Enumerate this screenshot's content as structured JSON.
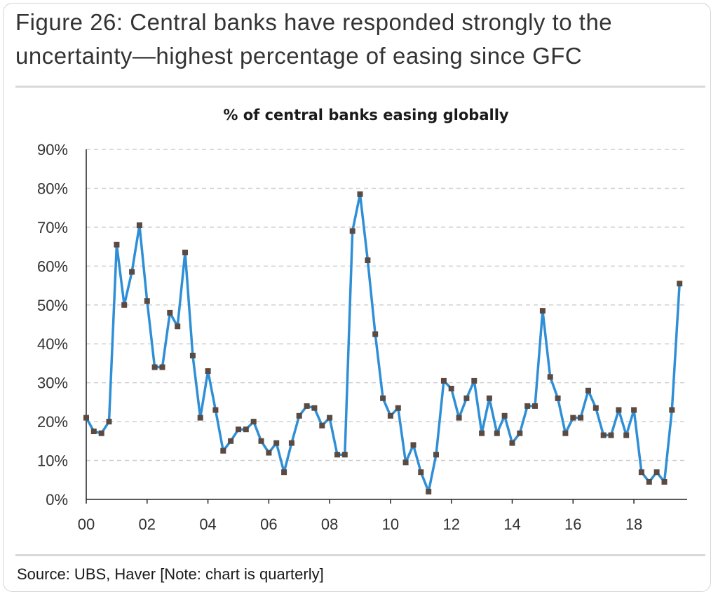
{
  "figure": {
    "title_line1": "Figure 26: Central banks have responded strongly to the",
    "title_line2": "uncertainty—highest percentage of easing since GFC",
    "source": "Source:  UBS, Haver [Note: chart is quarterly]"
  },
  "chart_data": {
    "type": "line",
    "title": "% of central banks easing globally",
    "xlabel": "",
    "ylabel": "",
    "xlim": [
      2000,
      2019.75
    ],
    "ylim": [
      0,
      90
    ],
    "x_ticks": [
      "00",
      "02",
      "04",
      "06",
      "08",
      "10",
      "12",
      "14",
      "16",
      "18"
    ],
    "y_ticks": [
      "0%",
      "10%",
      "20%",
      "30%",
      "40%",
      "50%",
      "60%",
      "70%",
      "80%",
      "90%"
    ],
    "grid": "horizontal dashed",
    "legend": "none",
    "line_color": "#2e8fd6",
    "marker_color": "#5a4a42",
    "series": [
      {
        "name": "% of central banks easing globally",
        "x_start": 2000.0,
        "x_step": 0.25,
        "values": [
          21,
          17.5,
          17,
          20,
          65.5,
          50,
          58.5,
          70.5,
          51,
          34,
          34,
          48,
          44.5,
          63.5,
          37,
          21,
          33,
          23,
          12.5,
          15,
          18,
          18,
          20,
          15,
          12,
          14.5,
          7,
          14.5,
          21.5,
          24,
          23.5,
          19,
          21,
          11.5,
          11.5,
          69,
          78.5,
          61.5,
          42.5,
          26,
          21.5,
          23.5,
          9.5,
          14,
          7,
          2,
          11.5,
          30.5,
          28.5,
          21,
          26,
          30.5,
          17,
          26,
          17,
          21.5,
          14.5,
          17,
          24,
          24,
          48.5,
          31.5,
          26,
          17,
          21,
          21,
          28,
          23.5,
          16.5,
          16.5,
          23,
          16.5,
          23,
          7,
          4.5,
          7,
          4.5,
          23,
          55.5
        ]
      }
    ]
  }
}
